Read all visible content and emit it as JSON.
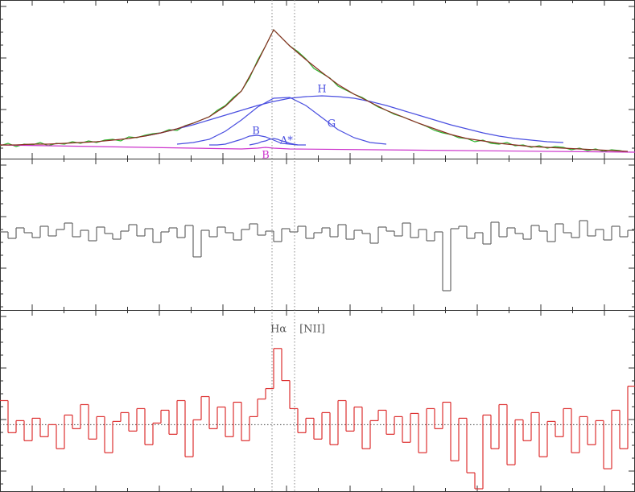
{
  "chart_data": [
    {
      "type": "line",
      "xlim": [
        0,
        789
      ],
      "ylim": [
        0,
        197
      ],
      "annotations": [
        "H",
        "G",
        "B",
        "A*",
        "B"
      ],
      "series": [
        {
          "color": "#2fb52f",
          "x": [
            0,
            10,
            20,
            30,
            40,
            50,
            60,
            70,
            80,
            90,
            100,
            110,
            120,
            130,
            140,
            150,
            160,
            170,
            180,
            190,
            200,
            210,
            220,
            230,
            240,
            250,
            260,
            270,
            280,
            290,
            300,
            310,
            320,
            330,
            340,
            350,
            360,
            370,
            380,
            390,
            400,
            410,
            420,
            430,
            440,
            450,
            460,
            470,
            480,
            490,
            500,
            510,
            520,
            530,
            540,
            550,
            560,
            570,
            580,
            590,
            600,
            610,
            620,
            630,
            640,
            650,
            660,
            670,
            680,
            690,
            700,
            710,
            720,
            730,
            740,
            750,
            760,
            770,
            780
          ],
          "values": [
            16,
            19,
            15,
            18,
            17,
            20,
            16,
            19,
            18,
            21,
            19,
            22,
            20,
            23,
            24,
            22,
            27,
            26,
            29,
            31,
            32,
            36,
            35,
            41,
            44,
            48,
            52,
            60,
            66,
            76,
            84,
            100,
            122,
            140,
            160,
            150,
            140,
            133,
            124,
            112,
            106,
            100,
            90,
            85,
            80,
            76,
            70,
            64,
            60,
            55,
            52,
            48,
            44,
            40,
            35,
            32,
            30,
            26,
            25,
            21,
            23,
            19,
            18,
            20,
            16,
            17,
            14,
            16,
            13,
            15,
            14,
            11,
            13,
            10,
            12,
            9,
            11,
            10,
            8
          ]
        },
        {
          "color": "#cc33cc",
          "x": [
            0,
            300,
            320,
            330,
            340,
            360,
            789
          ],
          "values": [
            17,
            12,
            13,
            14,
            13,
            12,
            8
          ]
        },
        {
          "color": "#4a4fe0",
          "x": [
            180,
            200,
            220,
            240,
            260,
            280,
            300,
            320,
            340,
            360,
            380,
            400,
            420,
            440,
            460,
            480,
            500,
            520,
            540,
            560,
            580,
            600,
            620,
            640,
            660,
            680,
            700
          ],
          "values": [
            28,
            32,
            37,
            42,
            48,
            54,
            60,
            66,
            71,
            75,
            77,
            78,
            77,
            75,
            71,
            66,
            60,
            54,
            48,
            42,
            37,
            32,
            28,
            25,
            23,
            21,
            20
          ]
        },
        {
          "color": "#4a4fe0",
          "x": [
            220,
            240,
            260,
            280,
            300,
            320,
            340,
            360,
            380,
            400,
            420,
            440,
            460,
            480
          ],
          "values": [
            18,
            20,
            24,
            34,
            48,
            64,
            75,
            76,
            66,
            51,
            36,
            26,
            20,
            18
          ]
        },
        {
          "color": "#4a4fe0",
          "x": [
            260,
            270,
            280,
            290,
            300,
            310,
            320,
            330,
            340,
            350,
            360,
            370,
            380
          ],
          "values": [
            17,
            17,
            18,
            21,
            24,
            28,
            29,
            27,
            23,
            19,
            18,
            17,
            17
          ]
        },
        {
          "color": "#4a4fe0",
          "x": [
            310,
            315,
            320,
            325,
            330,
            335,
            340,
            345,
            350,
            355,
            360,
            365,
            370
          ],
          "values": [
            17,
            18,
            19,
            21,
            22,
            24,
            25,
            24,
            22,
            21,
            19,
            18,
            17
          ]
        },
        {
          "color": "#8a2c22",
          "x": [
            0,
            20,
            40,
            60,
            80,
            100,
            120,
            140,
            160,
            180,
            200,
            220,
            240,
            260,
            280,
            300,
            320,
            340,
            360,
            380,
            400,
            420,
            440,
            460,
            480,
            500,
            520,
            540,
            560,
            580,
            600,
            620,
            640,
            660,
            680,
            700,
            720,
            740,
            760,
            780
          ],
          "values": [
            17,
            17,
            18,
            18,
            19,
            20,
            21,
            23,
            25,
            28,
            32,
            37,
            44,
            52,
            65,
            84,
            120,
            160,
            140,
            123,
            107,
            92,
            80,
            70,
            60,
            52,
            44,
            37,
            30,
            25,
            22,
            19,
            17,
            15,
            14,
            13,
            12,
            11,
            10,
            9
          ]
        }
      ]
    },
    {
      "type": "step",
      "xlim": [
        0,
        789
      ],
      "ylim": [
        -94,
        94
      ],
      "series": [
        {
          "color": "#666666",
          "x": [
            0,
            10,
            20,
            30,
            40,
            50,
            60,
            70,
            80,
            90,
            100,
            110,
            120,
            130,
            140,
            150,
            160,
            170,
            180,
            190,
            200,
            210,
            220,
            230,
            240,
            250,
            260,
            270,
            280,
            290,
            300,
            310,
            320,
            330,
            340,
            350,
            360,
            370,
            380,
            390,
            400,
            410,
            420,
            430,
            440,
            450,
            460,
            470,
            480,
            490,
            500,
            510,
            520,
            530,
            540,
            550,
            560,
            570,
            580,
            590,
            600,
            610,
            620,
            630,
            640,
            650,
            660,
            670,
            680,
            690,
            700,
            710,
            720,
            730,
            740,
            750,
            760,
            770,
            780
          ],
          "values": [
            3,
            -5,
            8,
            2,
            -4,
            10,
            -2,
            6,
            14,
            -3,
            5,
            -8,
            9,
            1,
            -6,
            4,
            12,
            -2,
            7,
            -10,
            3,
            8,
            -4,
            11,
            -28,
            5,
            -3,
            9,
            2,
            -7,
            6,
            13,
            -1,
            4,
            -9,
            7,
            3,
            10,
            -5,
            2,
            8,
            -3,
            12,
            -6,
            5,
            1,
            -11,
            9,
            4,
            -2,
            14,
            -4,
            6,
            -8,
            3,
            -70,
            7,
            10,
            -5,
            2,
            -12,
            15,
            -3,
            8,
            1,
            -6,
            11,
            4,
            -9,
            13,
            2,
            -4,
            17,
            -2,
            6,
            -7,
            10,
            -3,
            5
          ]
        }
      ]
    },
    {
      "type": "step",
      "xlim": [
        0,
        789
      ],
      "ylim": [
        -83,
        143
      ],
      "hline": 0,
      "markers": [
        {
          "label": "Hα",
          "x": 338
        },
        {
          "label": "[NII]",
          "x": 366
        }
      ],
      "series": [
        {
          "color": "#dd3030",
          "x": [
            0,
            10,
            20,
            30,
            40,
            50,
            60,
            70,
            80,
            90,
            100,
            110,
            120,
            130,
            140,
            150,
            160,
            170,
            180,
            190,
            200,
            210,
            220,
            230,
            240,
            250,
            260,
            270,
            280,
            290,
            300,
            310,
            320,
            330,
            340,
            350,
            360,
            370,
            380,
            390,
            400,
            410,
            420,
            430,
            440,
            450,
            460,
            470,
            480,
            490,
            500,
            510,
            520,
            530,
            540,
            550,
            560,
            570,
            580,
            590,
            600,
            610,
            620,
            630,
            640,
            650,
            660,
            670,
            680,
            690,
            700,
            710,
            720,
            730,
            740,
            750,
            760,
            770,
            780
          ],
          "values": [
            30,
            -10,
            5,
            -20,
            8,
            -15,
            0,
            -30,
            12,
            -5,
            25,
            -18,
            10,
            -35,
            4,
            15,
            -8,
            20,
            -25,
            2,
            18,
            -12,
            30,
            -40,
            6,
            35,
            -5,
            22,
            -15,
            28,
            -20,
            10,
            32,
            45,
            95,
            55,
            20,
            -10,
            8,
            -18,
            15,
            -25,
            30,
            -8,
            22,
            -30,
            5,
            18,
            -12,
            10,
            -22,
            14,
            -35,
            20,
            -5,
            28,
            -45,
            8,
            -60,
            -80,
            12,
            -30,
            25,
            -50,
            6,
            -20,
            15,
            -40,
            4,
            -15,
            20,
            -35,
            10,
            -25,
            5,
            -55,
            18,
            -30,
            48
          ]
        }
      ]
    }
  ]
}
